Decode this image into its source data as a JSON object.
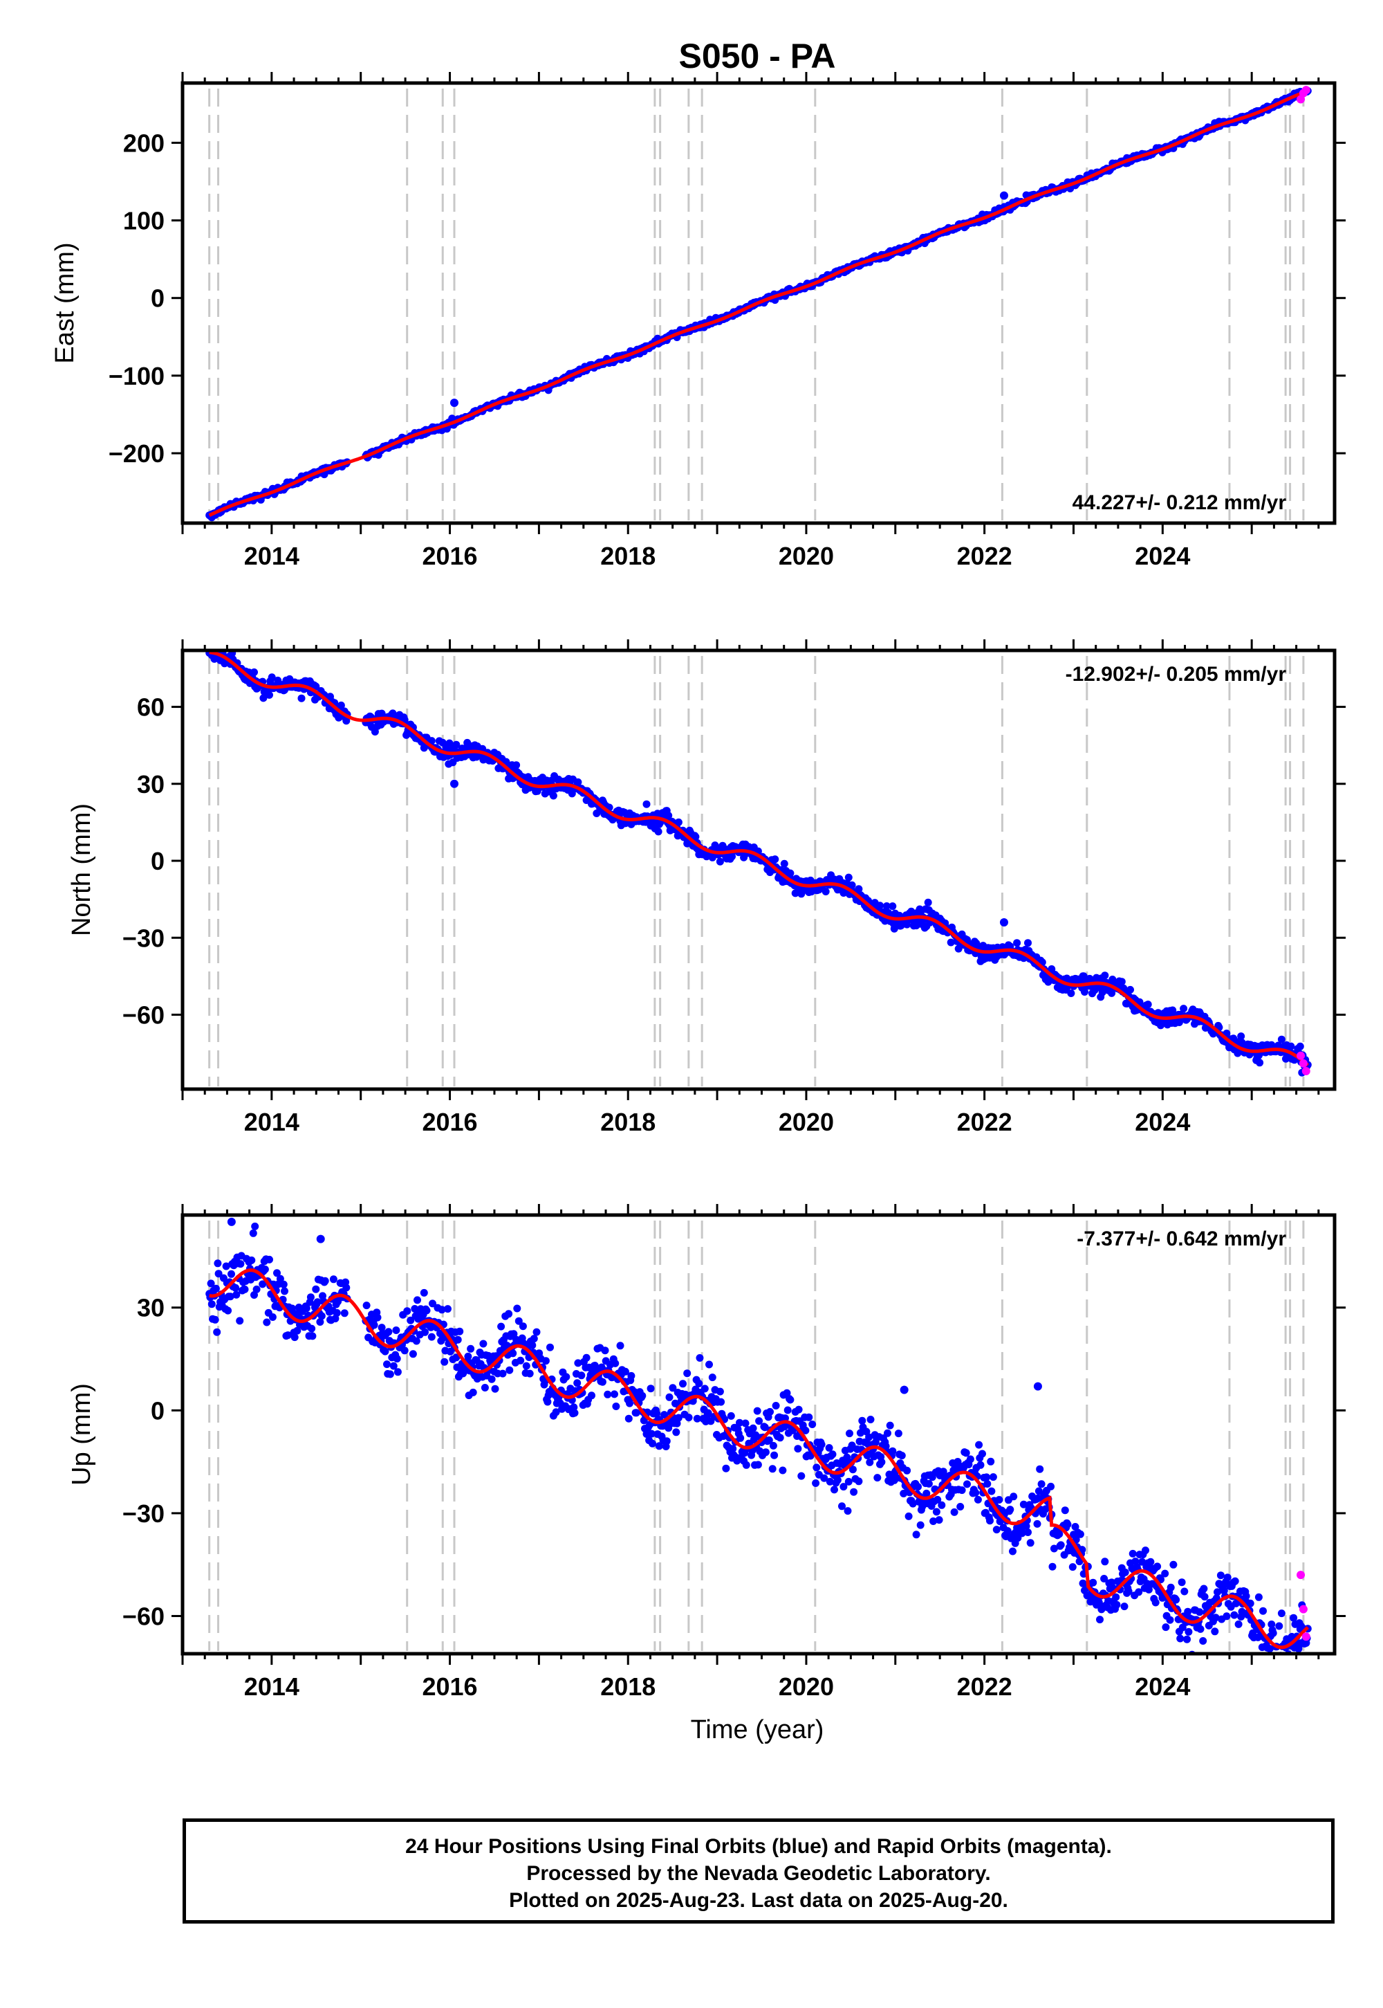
{
  "title": "S050 - PA",
  "xlabel": "Time (year)",
  "footer": {
    "line1": "24 Hour Positions Using Final Orbits (blue) and Rapid Orbits (magenta).",
    "line2": "Processed by the Nevada Geodetic Laboratory.",
    "line3": "Plotted on 2025-Aug-23. Last data on 2025-Aug-20."
  },
  "colors": {
    "final": "#0000ff",
    "rapid": "#ff00ff",
    "model": "#ff0000",
    "event_lines": "#c8c8c8",
    "frame": "#000000"
  },
  "chart_data": [
    {
      "type": "scatter",
      "name": "east",
      "ylabel": "East (mm)",
      "rate_text": "44.227+/- 0.212 mm/yr",
      "rate_placement": "bottom-right",
      "xlim": [
        2013.0,
        2025.93
      ],
      "ylim": [
        -290,
        277
      ],
      "yticks": [
        -200,
        -100,
        0,
        100,
        200
      ],
      "xticks": [
        2014,
        2016,
        2018,
        2020,
        2022,
        2024
      ],
      "xstart": 2013.3,
      "xend": 2025.63,
      "trend": {
        "rate": 44.227,
        "ref_year": 2013.3,
        "ref_value": -280
      },
      "seasonal": {
        "amplitude": 1.5,
        "phase": 0.3
      },
      "noise": 1.8,
      "steps": [],
      "outliers": [
        {
          "x": 2016.05,
          "y": -135
        },
        {
          "x": 2022.22,
          "y": 132
        }
      ],
      "rapid": {
        "from": 2025.55,
        "values": [
          256,
          264,
          268
        ]
      }
    },
    {
      "type": "scatter",
      "name": "north",
      "ylabel": "North (mm)",
      "rate_text": "-12.902+/- 0.205 mm/yr",
      "rate_placement": "top-right",
      "xlim": [
        2013.0,
        2025.93
      ],
      "ylim": [
        -89,
        82
      ],
      "yticks": [
        -60,
        -30,
        0,
        30,
        60
      ],
      "xticks": [
        2014,
        2016,
        2018,
        2020,
        2022,
        2024
      ],
      "xstart": 2013.3,
      "xend": 2025.63,
      "trend": {
        "rate": -12.902,
        "ref_year": 2013.3,
        "ref_value": 79
      },
      "seasonal": {
        "amplitude": 2.8,
        "phase": 0.15
      },
      "noise": 1.6,
      "steps": [],
      "outliers": [
        {
          "x": 2016.05,
          "y": 30
        },
        {
          "x": 2020.55,
          "y": -13
        },
        {
          "x": 2022.22,
          "y": -24
        }
      ],
      "rapid": {
        "from": 2025.55,
        "values": [
          -76,
          -79,
          -82
        ]
      }
    },
    {
      "type": "scatter",
      "name": "up",
      "ylabel": "Up (mm)",
      "rate_text": "-7.377+/- 0.642 mm/yr",
      "rate_placement": "top-right",
      "xlim": [
        2013.0,
        2025.93
      ],
      "ylim": [
        -71,
        57
      ],
      "yticks": [
        -60,
        -30,
        0,
        30
      ],
      "xticks": [
        2014,
        2016,
        2018,
        2020,
        2022,
        2024
      ],
      "xstart": 2013.3,
      "xend": 2025.63,
      "trend": {
        "rate": -7.377,
        "ref_year": 2013.3,
        "ref_value": 39
      },
      "seasonal": {
        "amplitude": 5.5,
        "phase": 0.55
      },
      "noise": 4.2,
      "steps": [
        {
          "x": 2022.75,
          "dy": -8
        },
        {
          "x": 2023.15,
          "dy": -6
        }
      ],
      "outliers": [
        {
          "x": 2013.55,
          "y": 55
        },
        {
          "x": 2014.55,
          "y": 50
        },
        {
          "x": 2021.1,
          "y": 6
        },
        {
          "x": 2022.6,
          "y": 7
        },
        {
          "x": 2025.55,
          "y": -68
        }
      ],
      "rapid": {
        "from": 2025.55,
        "values": [
          -48,
          -58,
          -66
        ]
      }
    }
  ],
  "event_lines": [
    2013.3,
    2013.4,
    2015.52,
    2015.92,
    2016.05,
    2018.3,
    2018.36,
    2018.68,
    2018.83,
    2020.1,
    2022.2,
    2023.15,
    2024.75,
    2025.38,
    2025.43,
    2025.58
  ]
}
